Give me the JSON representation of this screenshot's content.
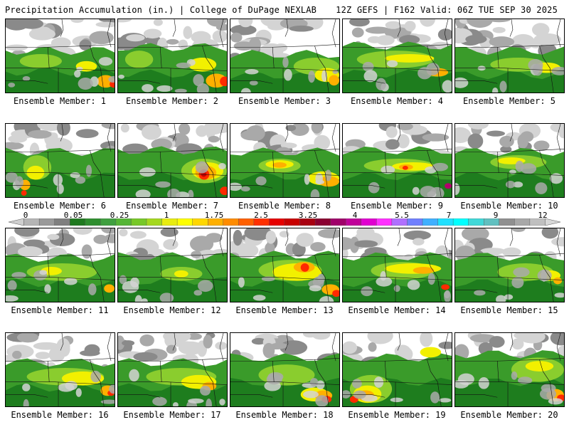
{
  "header": {
    "title_left": "Precipitation Accumulation (in.) | College of DuPage NEXLAB",
    "title_right": "12Z GEFS | F162 Valid: 06Z TUE SEP 30 2025"
  },
  "colorbar": {
    "ticks": [
      "0",
      "0.05",
      "0.25",
      "1",
      "1.75",
      "2.5",
      "3.25",
      "4",
      "5.5",
      "7",
      "9",
      "12"
    ],
    "colors": [
      "#cfcfcf",
      "#b5b5b5",
      "#9a9a9a",
      "#7f7f7f",
      "#1f7a1f",
      "#2f8f2f",
      "#40a040",
      "#55b535",
      "#78c828",
      "#a5d81e",
      "#e8ec10",
      "#ffff00",
      "#ffd700",
      "#ffb000",
      "#ff8c00",
      "#ff6000",
      "#ff3000",
      "#e60000",
      "#c80000",
      "#a80010",
      "#8a0030",
      "#a0006a",
      "#c0009a",
      "#e000d0",
      "#ff30ff",
      "#b070ff",
      "#7080ff",
      "#40b0ff",
      "#20e0ff",
      "#00ffff",
      "#40d8d8",
      "#60c0c0",
      "#909090",
      "#a8a8a8",
      "#c0c0c0",
      "#d8d8d8"
    ]
  },
  "members": [
    {
      "label": "Ensemble Member: 1"
    },
    {
      "label": "Ensemble Member: 2"
    },
    {
      "label": "Ensemble Member: 3"
    },
    {
      "label": "Ensemble Member: 4"
    },
    {
      "label": "Ensemble Member: 5"
    },
    {
      "label": "Ensemble Member: 6"
    },
    {
      "label": "Ensemble Member: 7"
    },
    {
      "label": "Ensemble Member: 8"
    },
    {
      "label": "Ensemble Member: 9"
    },
    {
      "label": "Ensemble Member: 10"
    },
    {
      "label": "Ensemble Member: 11"
    },
    {
      "label": "Ensemble Member: 12"
    },
    {
      "label": "Ensemble Member: 13"
    },
    {
      "label": "Ensemble Member: 14"
    },
    {
      "label": "Ensemble Member: 15"
    },
    {
      "label": "Ensemble Member: 16"
    },
    {
      "label": "Ensemble Member: 17"
    },
    {
      "label": "Ensemble Member: 18"
    },
    {
      "label": "Ensemble Member: 19"
    },
    {
      "label": "Ensemble Member: 20"
    }
  ],
  "palette": {
    "white": "#ffffff",
    "lightgray": "#d4d4d4",
    "gray": "#a9a9a9",
    "darkgray": "#8a8a8a",
    "darkgreen": "#1e7d1e",
    "green": "#3a9b2a",
    "lightgreen": "#8acd2e",
    "yellow": "#f2f000",
    "orange": "#ffb000",
    "red": "#ff2a00",
    "darkred": "#c80000",
    "magenta": "#b0006a"
  }
}
